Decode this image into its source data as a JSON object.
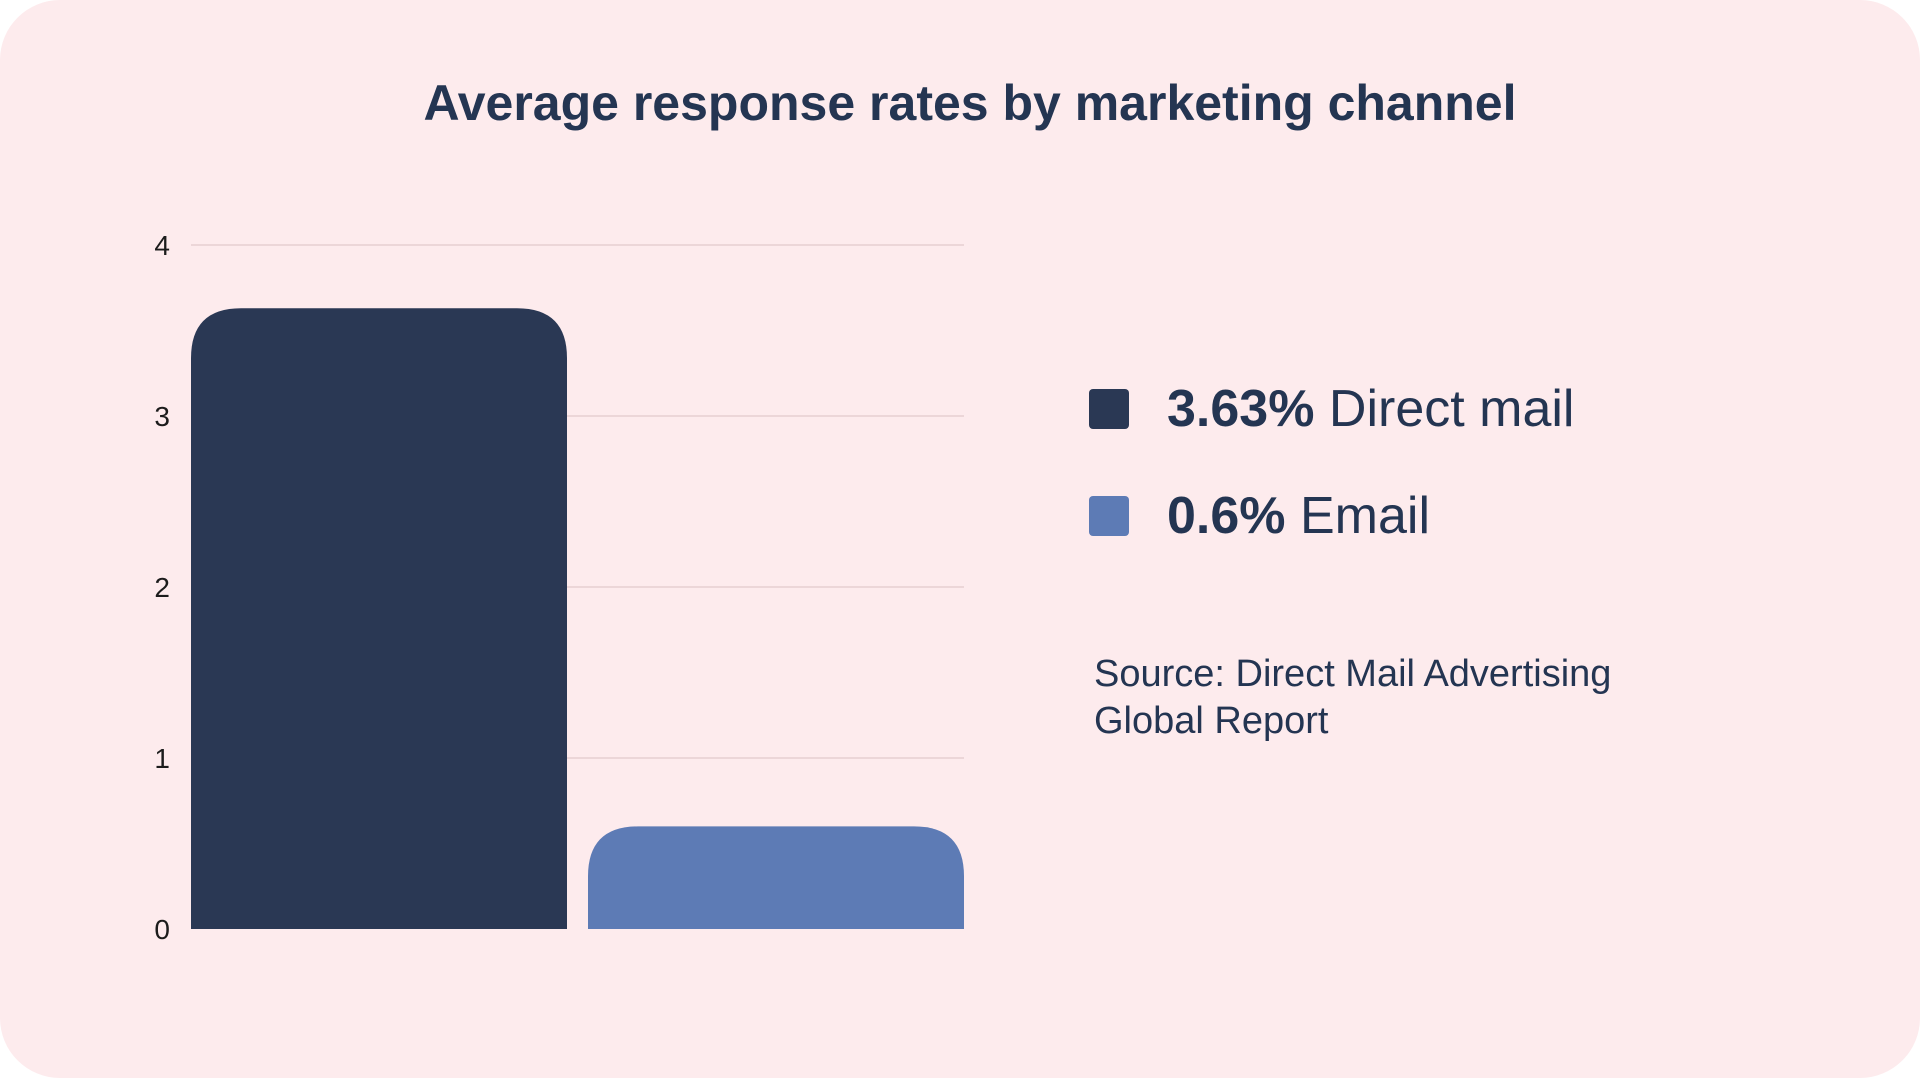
{
  "chart_data": {
    "type": "bar",
    "title": "Average response rates by marketing channel",
    "categories": [
      "Direct mail",
      "Email"
    ],
    "values": [
      3.63,
      0.6
    ],
    "value_labels": [
      "3.63%",
      "0.6%"
    ],
    "colors": [
      "#2a3854",
      "#5d7bb5"
    ],
    "ylim": [
      0,
      4
    ],
    "yticks": [
      "0",
      "1",
      "2",
      "3",
      "4"
    ],
    "xlabel": "",
    "ylabel": "",
    "grid": true,
    "legend_position": "right",
    "source": "Source: Direct Mail Advertising Global Report"
  }
}
